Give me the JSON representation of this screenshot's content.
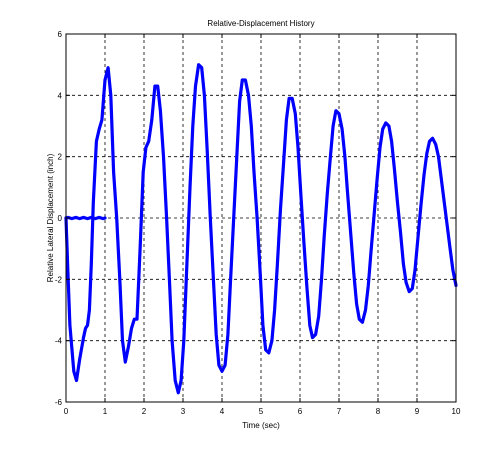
{
  "chart_data": {
    "type": "line",
    "title": "Relative-Displacement History",
    "xlabel": "Time (sec)",
    "ylabel": "Relative Lateral Displacement (inch)",
    "xlim": [
      0,
      10
    ],
    "ylim": [
      -6,
      6
    ],
    "grid": true,
    "x_ticks": [
      "0",
      "1",
      "2",
      "3",
      "4",
      "5",
      "6",
      "7",
      "8",
      "9",
      "10"
    ],
    "y_ticks": [
      "-6",
      "-4",
      "-2",
      "0",
      "2",
      "4",
      "6"
    ],
    "series": [
      {
        "color": "#0000ff",
        "x": [
          0,
          0.04,
          0.1,
          0.2,
          0.27,
          0.35,
          0.45,
          0.5,
          0.55,
          0.6,
          0.65,
          0.7,
          0.78,
          0.85,
          0.92,
          1.0,
          1.08,
          1.15,
          1.22,
          1.3,
          1.38,
          1.45,
          1.52,
          1.6,
          1.68,
          1.75,
          1.82,
          1.9,
          1.98,
          2.05,
          2.12,
          2.2,
          2.28,
          2.35,
          2.42,
          2.5,
          2.58,
          2.65,
          2.72,
          2.8,
          2.88,
          2.95,
          3.02,
          3.1,
          3.18,
          3.25,
          3.32,
          3.4,
          3.48,
          3.55,
          3.62,
          3.7,
          3.78,
          3.85,
          3.92,
          4.0,
          4.08,
          4.15,
          4.22,
          4.3,
          4.38,
          4.45,
          4.52,
          4.6,
          4.68,
          4.75,
          4.82,
          4.9,
          4.98,
          5.05,
          5.12,
          5.2,
          5.28,
          5.35,
          5.42,
          5.5,
          5.58,
          5.65,
          5.72,
          5.8,
          5.88,
          5.95,
          6.02,
          6.1,
          6.18,
          6.25,
          6.32,
          6.4,
          6.48,
          6.55,
          6.62,
          6.7,
          6.78,
          6.85,
          6.92,
          7.0,
          7.08,
          7.15,
          7.22,
          7.3,
          7.38,
          7.45,
          7.52,
          7.6,
          7.68,
          7.75,
          7.82,
          7.9,
          7.98,
          8.05,
          8.12,
          8.2,
          8.28,
          8.35,
          8.42,
          8.5,
          8.58,
          8.65,
          8.72,
          8.8,
          8.88,
          8.95,
          9.02,
          9.1,
          9.18,
          9.25,
          9.32,
          9.4,
          9.48,
          9.55,
          9.62,
          9.7,
          9.78,
          9.85,
          9.92,
          10.0
        ],
        "y": [
          0,
          -1.5,
          -3.5,
          -5.0,
          -5.3,
          -4.6,
          -3.9,
          -3.6,
          -3.5,
          -3.0,
          -1.5,
          0.5,
          2.5,
          2.9,
          3.2,
          4.5,
          4.9,
          4.0,
          1.5,
          0,
          -2.0,
          -4.0,
          -4.7,
          -4.2,
          -3.6,
          -3.3,
          -3.3,
          -1.0,
          1.5,
          2.3,
          2.5,
          3.2,
          4.3,
          4.3,
          3.5,
          2.0,
          0,
          -2.0,
          -4.0,
          -5.3,
          -5.7,
          -5.3,
          -4.0,
          -1.5,
          1.0,
          3.0,
          4.3,
          5.0,
          4.9,
          4.0,
          2.2,
          0,
          -2.0,
          -3.8,
          -4.8,
          -5.0,
          -4.8,
          -3.8,
          -2.0,
          0,
          2.0,
          3.8,
          4.5,
          4.5,
          4.0,
          3.0,
          1.5,
          0,
          -1.8,
          -3.5,
          -4.3,
          -4.4,
          -4.0,
          -3.0,
          -1.5,
          0.3,
          1.8,
          3.2,
          3.9,
          3.9,
          3.4,
          2.3,
          0.8,
          -0.8,
          -2.3,
          -3.5,
          -3.9,
          -3.8,
          -3.2,
          -2.0,
          -0.6,
          0.8,
          2.0,
          3.0,
          3.5,
          3.4,
          2.9,
          2.0,
          0.8,
          -0.5,
          -1.8,
          -2.8,
          -3.3,
          -3.4,
          -3.0,
          -2.2,
          -1.1,
          0.1,
          1.3,
          2.3,
          2.9,
          3.1,
          3.0,
          2.5,
          1.6,
          0.5,
          -0.5,
          -1.5,
          -2.1,
          -2.4,
          -2.3,
          -1.7,
          -0.7,
          0.4,
          1.4,
          2.1,
          2.5,
          2.6,
          2.4,
          2.0,
          1.3,
          0.5,
          -0.3,
          -1.0,
          -1.7,
          -2.2
        ]
      },
      {
        "color": "#0000ff",
        "x": [
          0,
          0.05,
          0.15,
          0.25,
          0.35,
          0.45,
          0.55,
          0.65,
          0.75,
          0.85,
          0.95,
          1.0
        ],
        "y": [
          0,
          0.02,
          -0.02,
          0.02,
          -0.02,
          0.02,
          -0.02,
          0.02,
          -0.02,
          0.02,
          -0.02,
          0
        ]
      }
    ]
  }
}
